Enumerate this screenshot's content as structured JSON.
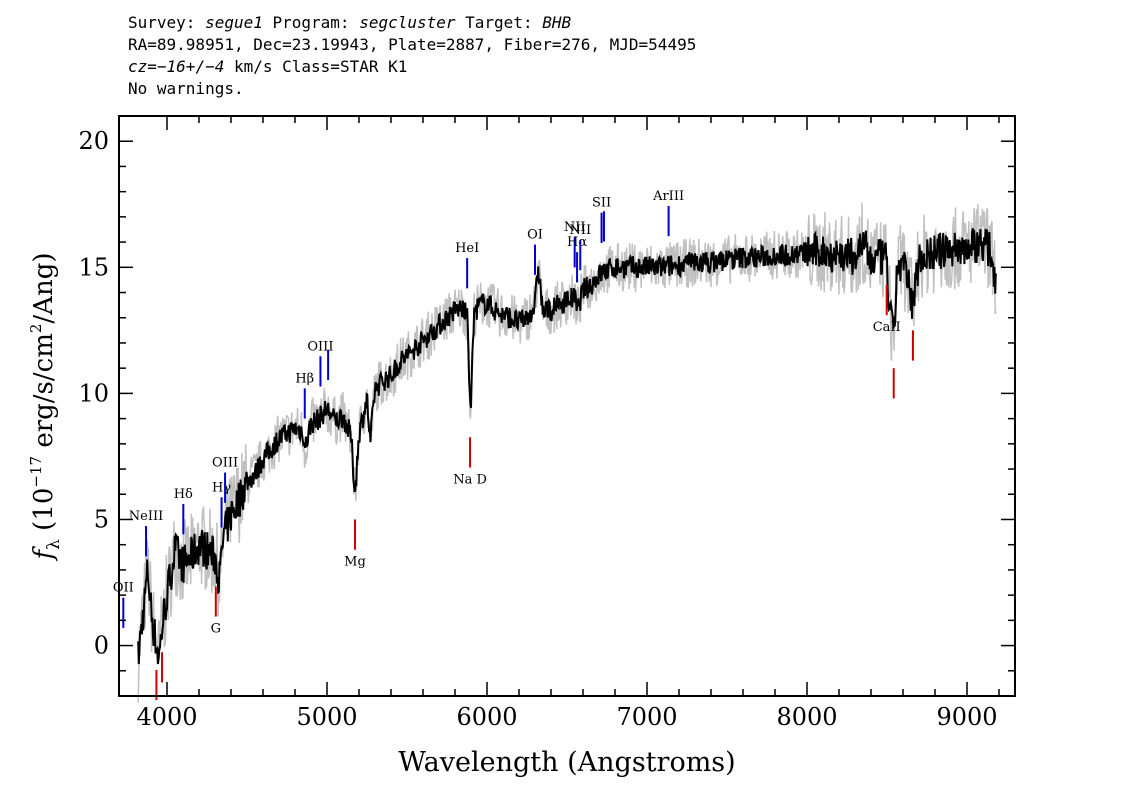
{
  "header": {
    "survey_label": "Survey: ",
    "survey": "segue1",
    "program_label": " Program: ",
    "program": "segcluster",
    "target_label": " Target: ",
    "target": "BHB",
    "line2": "RA=89.98951, Dec=23.19943, Plate=2887, Fiber=276, MJD=54495",
    "cz_prefix": "cz=",
    "cz_value": "−16+/−4",
    "cz_suffix": " km/s Class=STAR K1",
    "line4": "No warnings."
  },
  "colors": {
    "flux": "#000000",
    "error": "#c0c0c0",
    "emission": "#0000cc",
    "absorption": "#cc0000"
  },
  "chart_data": {
    "type": "line",
    "title": "",
    "xlabel": "Wavelength (Angstroms)",
    "ylabel_main": "f",
    "ylabel_sub": "λ",
    "ylabel_rest": " (10",
    "ylabel_exp": "−17",
    "ylabel_rest2": " erg/s/cm",
    "ylabel_exp2": "2",
    "ylabel_rest3": "/Ang)",
    "xlim": [
      3700,
      9300
    ],
    "ylim": [
      -2,
      21
    ],
    "xticks": [
      4000,
      5000,
      6000,
      7000,
      8000,
      9000
    ],
    "xtick_labels": [
      "4000",
      "5000",
      "6000",
      "7000",
      "8000",
      "9000"
    ],
    "yticks": [
      0,
      5,
      10,
      15,
      20
    ],
    "ytick_labels": [
      "0",
      "5",
      "10",
      "15",
      "20"
    ],
    "series": [
      {
        "kind": "flux",
        "x": [
          3820,
          3850,
          3880,
          3900,
          3920,
          3950,
          3970,
          4000,
          4050,
          4100,
          4150,
          4200,
          4250,
          4300,
          4330,
          4350,
          4400,
          4450,
          4500,
          4550,
          4600,
          4650,
          4700,
          4750,
          4800,
          4850,
          4861,
          4900,
          4950,
          5000,
          5050,
          5100,
          5150,
          5175,
          5200,
          5250,
          5270,
          5300,
          5350,
          5400,
          5450,
          5500,
          5550,
          5600,
          5650,
          5700,
          5750,
          5800,
          5850,
          5880,
          5895,
          5920,
          5950,
          6000,
          6050,
          6100,
          6150,
          6200,
          6250,
          6300,
          6320,
          6350,
          6400,
          6450,
          6500,
          6550,
          6563,
          6600,
          6650,
          6700,
          6750,
          6800,
          6850,
          6900,
          7000,
          7100,
          7200,
          7300,
          7400,
          7500,
          7600,
          7700,
          7800,
          7900,
          8000,
          8100,
          8200,
          8300,
          8350,
          8400,
          8450,
          8500,
          8498,
          8542,
          8560,
          8600,
          8662,
          8700,
          8800,
          8900,
          9000,
          9100,
          9150,
          9180
        ],
        "y": [
          -0.5,
          1.2,
          3.0,
          1.5,
          0.5,
          -0.5,
          0.8,
          2.0,
          3.8,
          3.2,
          3.5,
          4.0,
          3.8,
          3.5,
          2.6,
          4.2,
          5.2,
          5.8,
          6.5,
          6.8,
          7.4,
          7.8,
          8.2,
          8.4,
          8.6,
          8.5,
          7.8,
          8.8,
          9.0,
          9.4,
          8.9,
          9.1,
          8.3,
          6.0,
          8.4,
          9.8,
          8.0,
          10.2,
          10.5,
          10.7,
          11.2,
          11.5,
          11.8,
          12.1,
          12.4,
          12.7,
          13.0,
          13.3,
          13.4,
          12.9,
          9.0,
          13.2,
          13.5,
          13.6,
          13.3,
          13.1,
          13.0,
          12.8,
          13.0,
          13.5,
          15.0,
          13.2,
          13.3,
          13.5,
          13.7,
          13.8,
          13.2,
          14.1,
          14.3,
          14.7,
          14.9,
          15.0,
          15.0,
          15.0,
          15.0,
          15.0,
          15.1,
          15.2,
          15.2,
          15.3,
          15.4,
          15.4,
          15.5,
          15.5,
          15.6,
          15.6,
          15.5,
          15.4,
          16.0,
          15.2,
          15.4,
          15.3,
          14.6,
          12.0,
          14.8,
          15.2,
          13.5,
          15.4,
          15.6,
          15.7,
          15.8,
          16.0,
          15.6,
          14.5
        ]
      }
    ],
    "line_markers": [
      {
        "label": "OII",
        "wave": 3727,
        "type": "emission"
      },
      {
        "label": "NeIII",
        "wave": 3869,
        "type": "emission"
      },
      {
        "label": "",
        "wave": 3934,
        "type": "absorption"
      },
      {
        "label": "",
        "wave": 3969,
        "type": "absorption"
      },
      {
        "label": "Hδ",
        "wave": 4102,
        "type": "emission"
      },
      {
        "label": "G",
        "wave": 4305,
        "type": "absorption"
      },
      {
        "label": "Hγ",
        "wave": 4341,
        "type": "emission"
      },
      {
        "label": "OIII",
        "wave": 4363,
        "type": "emission"
      },
      {
        "label": "Hβ",
        "wave": 4861,
        "type": "emission"
      },
      {
        "label": "OIII",
        "wave": 4959,
        "type": "emission"
      },
      {
        "label": "",
        "wave": 5007,
        "type": "emission"
      },
      {
        "label": "Mg",
        "wave": 5175,
        "type": "absorption"
      },
      {
        "label": "Na D",
        "wave": 5894,
        "type": "absorption"
      },
      {
        "label": "HeI",
        "wave": 5876,
        "type": "emission"
      },
      {
        "label": "OI",
        "wave": 6300,
        "type": "emission"
      },
      {
        "label": "NII",
        "wave": 6548,
        "type": "emission"
      },
      {
        "label": "Hα",
        "wave": 6563,
        "type": "emission"
      },
      {
        "label": "NII",
        "wave": 6583,
        "type": "emission"
      },
      {
        "label": "SII",
        "wave": 6716,
        "type": "emission"
      },
      {
        "label": "",
        "wave": 6731,
        "type": "emission"
      },
      {
        "label": "ArIII",
        "wave": 7135,
        "type": "emission"
      },
      {
        "label": "CaII",
        "wave": 8498,
        "type": "absorption"
      },
      {
        "label": "",
        "wave": 8542,
        "type": "absorption"
      },
      {
        "label": "",
        "wave": 8662,
        "type": "absorption"
      }
    ]
  }
}
